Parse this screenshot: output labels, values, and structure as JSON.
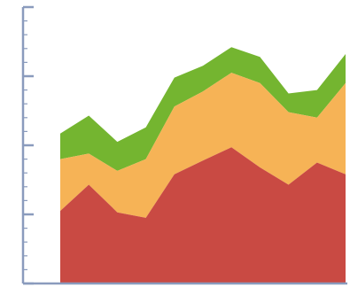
{
  "chart_data": {
    "type": "area",
    "stacked": true,
    "x": [
      0,
      1,
      2,
      3,
      4,
      5,
      6,
      7,
      8,
      9,
      10
    ],
    "series": [
      {
        "color": "#c94a43",
        "values": [
          10.5,
          14.3,
          10.3,
          9.5,
          15.8,
          17.8,
          19.7,
          16.8,
          14.3,
          17.5,
          15.8
        ]
      },
      {
        "color": "#f6b356",
        "values": [
          7.5,
          4.5,
          6.0,
          8.5,
          9.8,
          10.0,
          10.8,
          12.2,
          10.5,
          6.5,
          13.2
        ]
      },
      {
        "color": "#74b530",
        "values": [
          3.7,
          5.5,
          4.2,
          4.6,
          4.2,
          3.7,
          3.7,
          3.8,
          2.7,
          4.0,
          4.2
        ]
      }
    ],
    "xlim": [
      0,
      10
    ],
    "ylim": [
      0,
      40
    ],
    "yticks": [
      0,
      10,
      20,
      30,
      40
    ],
    "grid": false,
    "legend": "none",
    "axis_color": "#8a9bbd"
  }
}
